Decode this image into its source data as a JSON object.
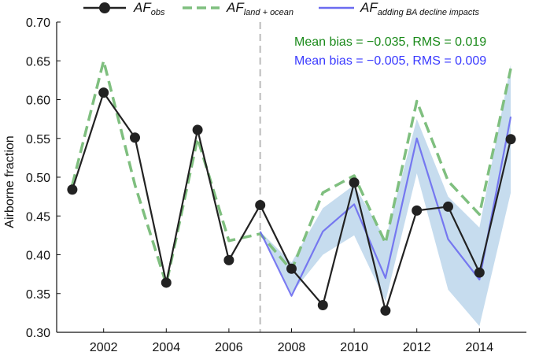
{
  "chart_data": {
    "type": "line",
    "ylabel": "Airborne fraction",
    "xlabel": "",
    "xlim": [
      2000.5,
      2015.5
    ],
    "ylim": [
      0.3,
      0.7
    ],
    "x_ticks": [
      2002,
      2004,
      2006,
      2008,
      2010,
      2012,
      2014
    ],
    "x_tick_labels": [
      "2002",
      "2004",
      "2006",
      "2008",
      "2010",
      "2012",
      "2014"
    ],
    "y_ticks": [
      0.3,
      0.35,
      0.4,
      0.45,
      0.5,
      0.55,
      0.6,
      0.65,
      0.7
    ],
    "y_tick_labels": [
      "0.30",
      "0.35",
      "0.40",
      "0.45",
      "0.50",
      "0.55",
      "0.60",
      "0.65",
      "0.70"
    ],
    "vertical_reference_line": 2007,
    "legend_position": "top",
    "grid": false,
    "series": [
      {
        "name": "AF",
        "name_subscript": "obs",
        "style": "solid-markers",
        "color": "#222222",
        "x": [
          2001,
          2002,
          2003,
          2004,
          2005,
          2006,
          2007,
          2008,
          2009,
          2010,
          2011,
          2012,
          2013,
          2014,
          2015
        ],
        "values": [
          0.484,
          0.609,
          0.551,
          0.364,
          0.561,
          0.393,
          0.464,
          0.382,
          0.335,
          0.493,
          0.328,
          0.457,
          0.462,
          0.377,
          0.549
        ]
      },
      {
        "name": "AF",
        "name_subscript": "land + ocean",
        "style": "dashed",
        "color": "#7fbf7f",
        "x": [
          2001,
          2002,
          2003,
          2004,
          2005,
          2006,
          2007,
          2008,
          2009,
          2010,
          2011,
          2012,
          2013,
          2014,
          2015
        ],
        "values": [
          0.49,
          0.65,
          0.49,
          0.362,
          0.55,
          0.418,
          0.427,
          0.38,
          0.48,
          0.502,
          0.415,
          0.598,
          0.495,
          0.452,
          0.64
        ]
      },
      {
        "name": "AF",
        "name_subscript": "adding BA decline impacts",
        "style": "solid-band",
        "color": "#6b6bf0",
        "band_color": "#b3d0e8",
        "x": [
          2007,
          2008,
          2009,
          2010,
          2011,
          2012,
          2013,
          2014,
          2015
        ],
        "values": [
          0.43,
          0.347,
          0.43,
          0.465,
          0.37,
          0.55,
          0.42,
          0.368,
          0.578
        ],
        "lower": [
          0.43,
          0.35,
          0.4,
          0.425,
          0.34,
          0.505,
          0.355,
          0.308,
          0.48
        ],
        "upper": [
          0.43,
          0.39,
          0.46,
          0.49,
          0.42,
          0.575,
          0.475,
          0.435,
          0.645
        ]
      }
    ],
    "annotations": [
      {
        "text": "Mean bias = −0.035, RMS = 0.019",
        "color": "#1a8a1a"
      },
      {
        "text": "Mean bias = −0.005, RMS = 0.009",
        "color": "#3a3aff"
      }
    ]
  }
}
